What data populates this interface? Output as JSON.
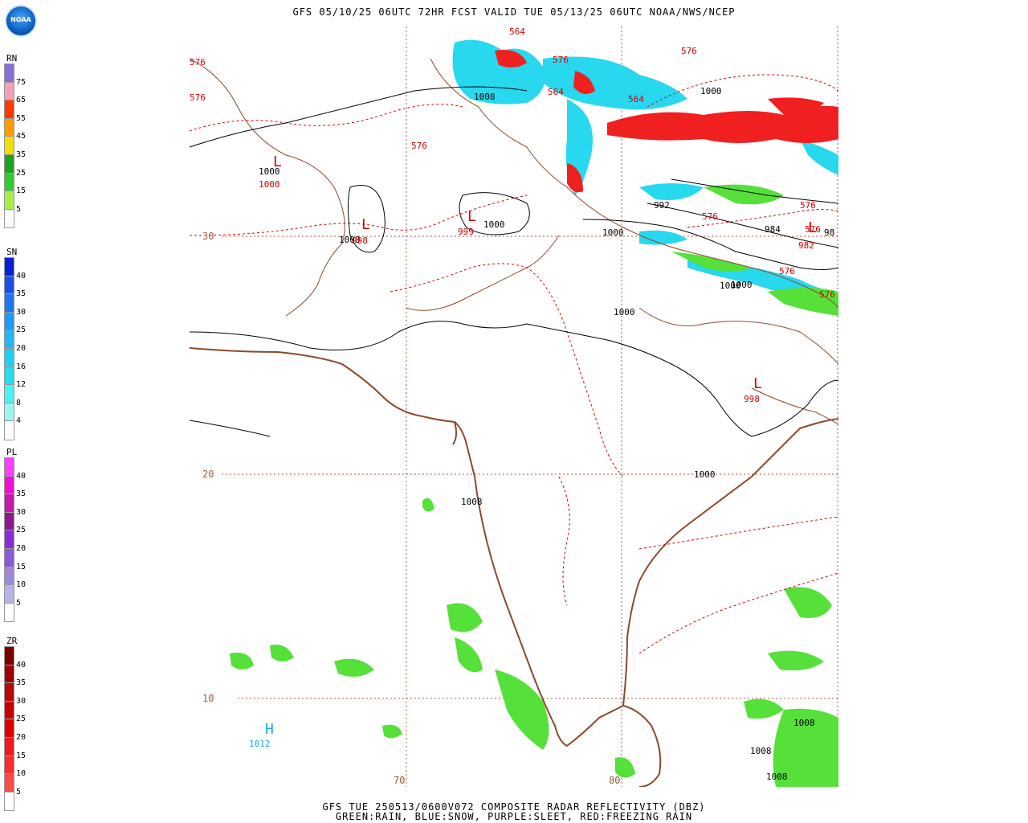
{
  "header": {
    "title": "GFS 05/10/25 06UTC 72HR FCST VALID TUE 05/13/25 06UTC NOAA/NWS/NCEP",
    "logo_text": "NOAA"
  },
  "footer": {
    "line1": "GFS TUE 250513/0600V072 COMPOSITE RADAR REFLECTIVITY (DBZ)",
    "line2": "GREEN:RAIN, BLUE:SNOW, PURPLE:SLEET, RED:FREEZING RAIN"
  },
  "legends": [
    {
      "id": "rn",
      "title": "RN",
      "labels": [
        "75",
        "65",
        "55",
        "45",
        "35",
        "25",
        "15",
        "5"
      ],
      "colors": [
        "#8a6fd8",
        "#f2a0b8",
        "#ff3a00",
        "#ff9b00",
        "#f0e000",
        "#1fa31f",
        "#2ecc2e",
        "#a8ef4a",
        "#ffffff"
      ]
    },
    {
      "id": "sn",
      "title": "SN",
      "labels": [
        "40",
        "35",
        "30",
        "25",
        "20",
        "16",
        "12",
        "8",
        "4"
      ],
      "colors": [
        "#0a1fd6",
        "#1a50e8",
        "#1c78f0",
        "#1e9bf2",
        "#22b8f5",
        "#1ed0f2",
        "#1fe0ef",
        "#4cf2f2",
        "#9af6f6",
        "#ffffff"
      ]
    },
    {
      "id": "pl",
      "title": "PL",
      "labels": [
        "40",
        "35",
        "30",
        "25",
        "20",
        "15",
        "10",
        "5"
      ],
      "colors": [
        "#ff3cff",
        "#f20cd8",
        "#c61aa8",
        "#8c1a8c",
        "#8c2ad8",
        "#8c5ad8",
        "#9a8ad8",
        "#b4b4e8",
        "#ffffff"
      ]
    },
    {
      "id": "zr",
      "title": "ZR",
      "labels": [
        "40",
        "35",
        "30",
        "25",
        "20",
        "15",
        "10",
        "5"
      ],
      "colors": [
        "#7a0000",
        "#9c0000",
        "#b40a0a",
        "#c80000",
        "#e00000",
        "#f01a1a",
        "#ff2a2a",
        "#ff4a4a",
        "#ffffff"
      ]
    }
  ],
  "map": {
    "lat_labels": [
      "30",
      "20",
      "10"
    ],
    "lon_labels": [
      "70",
      "80"
    ],
    "pressure_labels": [
      {
        "text": "1008",
        "id": "p1"
      },
      {
        "text": "1000",
        "id": "p2"
      },
      {
        "text": "1000",
        "id": "p3"
      },
      {
        "text": "1000",
        "id": "p4"
      },
      {
        "text": "1000",
        "id": "p5"
      },
      {
        "text": "992",
        "id": "p6"
      },
      {
        "text": "984",
        "id": "p7"
      },
      {
        "text": "1000",
        "id": "p8"
      },
      {
        "text": "1000",
        "id": "p9"
      },
      {
        "text": "1000",
        "id": "p10"
      },
      {
        "text": "1000",
        "id": "p11"
      },
      {
        "text": "1008",
        "id": "p12"
      },
      {
        "text": "1008",
        "id": "p13"
      },
      {
        "text": "1008",
        "id": "p14"
      },
      {
        "text": "1008",
        "id": "p15"
      },
      {
        "text": "1000",
        "id": "p16"
      },
      {
        "text": "98",
        "id": "p17"
      }
    ],
    "thickness_labels": [
      {
        "text": "564",
        "id": "t1"
      },
      {
        "text": "576",
        "id": "t2"
      },
      {
        "text": "576",
        "id": "t3"
      },
      {
        "text": "576",
        "id": "t4"
      },
      {
        "text": "564",
        "id": "t5"
      },
      {
        "text": "564",
        "id": "t6"
      },
      {
        "text": "576",
        "id": "t7"
      },
      {
        "text": "576",
        "id": "t8"
      },
      {
        "text": "576",
        "id": "t9"
      },
      {
        "text": "576",
        "id": "t10"
      },
      {
        "text": "576",
        "id": "t11"
      },
      {
        "text": "576",
        "id": "t12"
      },
      {
        "text": "576",
        "id": "t13"
      }
    ],
    "lows": [
      {
        "text": "L",
        "value": "1000",
        "id": "l1"
      },
      {
        "text": "L",
        "value": "998",
        "id": "l2"
      },
      {
        "text": "L",
        "value": "999",
        "id": "l3"
      },
      {
        "text": "L",
        "value": "982",
        "id": "l4"
      },
      {
        "text": "L",
        "value": "998",
        "id": "l5"
      }
    ],
    "highs": [
      {
        "text": "H",
        "value": "1012",
        "id": "h1"
      }
    ],
    "colors": {
      "border": "#8b4a2a",
      "isobar": "#000000",
      "thickness": "#d40000",
      "rain": "#55e03a",
      "snow": "#27d8ef",
      "freezing_rain": "#f02020",
      "high": "#1fa7e8"
    }
  }
}
